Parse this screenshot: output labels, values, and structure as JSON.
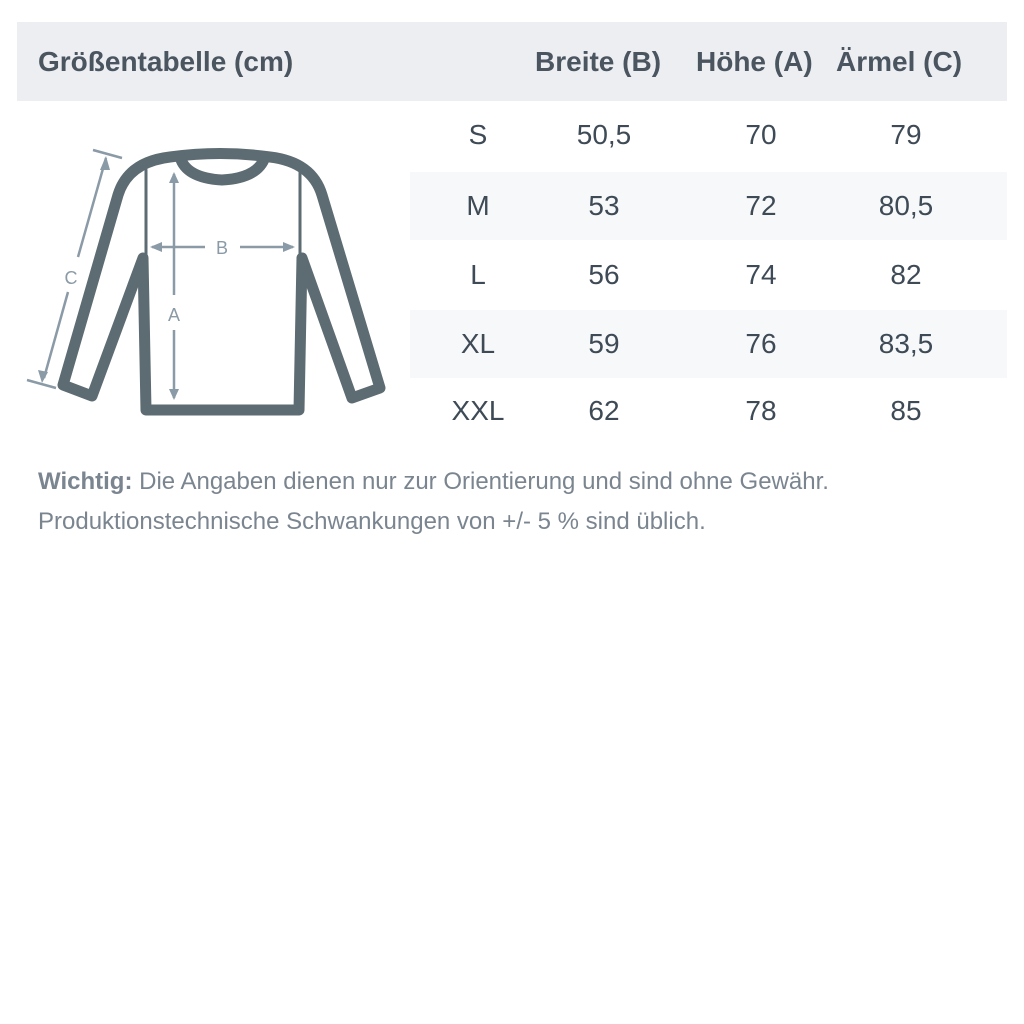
{
  "header": {
    "title": "Größentabelle (cm)",
    "columns": [
      "Breite (B)",
      "Höhe (A)",
      "Ärmel (C)"
    ]
  },
  "rows": [
    {
      "size": "S",
      "b": "50,5",
      "a": "70",
      "c": "79"
    },
    {
      "size": "M",
      "b": "53",
      "a": "72",
      "c": "80,5"
    },
    {
      "size": "L",
      "b": "56",
      "a": "74",
      "c": "82"
    },
    {
      "size": "XL",
      "b": "59",
      "a": "76",
      "c": "83,5"
    },
    {
      "size": "XXL",
      "b": "62",
      "a": "78",
      "c": "85"
    }
  ],
  "diagram": {
    "labels": {
      "a": "A",
      "b": "B",
      "c": "C"
    },
    "colors": {
      "outline": "#5d6b72",
      "arrows": "#8a9aa6"
    }
  },
  "note": {
    "bold": "Wichtig:",
    "line1": " Die Angaben dienen nur zur Orientierung und sind ohne Gewähr.",
    "line2": "Produktionstechnische Schwankungen von +/- 5 % sind üblich."
  }
}
